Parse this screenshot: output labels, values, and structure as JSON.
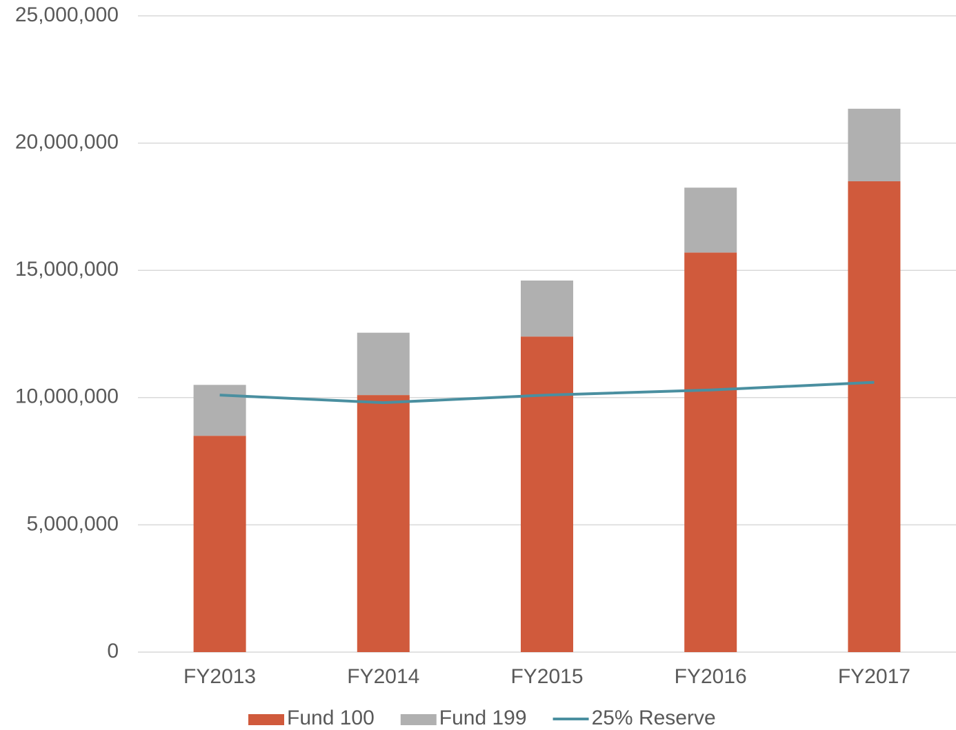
{
  "chart_data": {
    "type": "bar",
    "categories": [
      "FY2013",
      "FY2014",
      "FY2015",
      "FY2016",
      "FY2017"
    ],
    "series": [
      {
        "name": "Fund 100",
        "color": "#d05a3c",
        "values": [
          8500000,
          10100000,
          12400000,
          15700000,
          18500000
        ]
      },
      {
        "name": "Fund 199",
        "color": "#b0b0b0",
        "values": [
          2000000,
          2450000,
          2200000,
          2550000,
          2850000
        ]
      },
      {
        "name": "25% Reserve",
        "type": "line",
        "color": "#4a8fa0",
        "values": [
          10100000,
          9800000,
          10100000,
          10300000,
          10600000
        ]
      }
    ],
    "stacked": true,
    "ylim": [
      0,
      25000000
    ],
    "yticks": [
      0,
      {
        "value": 5000000,
        "label": "5,000,000"
      },
      {
        "value": 10000000,
        "label": "10,000,000"
      },
      {
        "value": 15000000,
        "label": "15,000,000"
      },
      {
        "value": 20000000,
        "label": "20,000,000"
      },
      {
        "value": 25000000,
        "label": "25,000,000"
      }
    ],
    "grid": true,
    "legend": "bottom"
  }
}
